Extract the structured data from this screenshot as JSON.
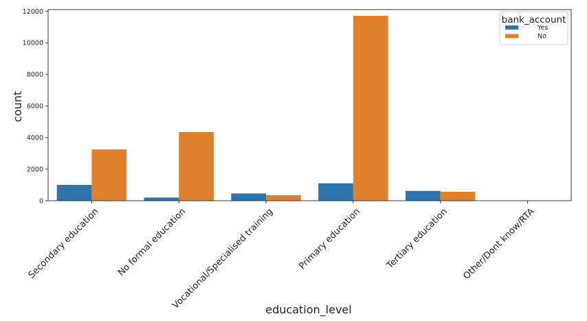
{
  "chart_data": {
    "type": "bar",
    "title": "",
    "xlabel": "education_level",
    "ylabel": "count",
    "ylim": [
      0,
      12100
    ],
    "yticks": [
      0,
      2000,
      4000,
      6000,
      8000,
      10000,
      12000
    ],
    "ytick_labels": [
      "0",
      "2000",
      "4000",
      "6000",
      "8000",
      "10000",
      "12000"
    ],
    "categories": [
      "Secondary education",
      "No formal education",
      "Vocational/Specialised training",
      "Primary education",
      "Tertiary education",
      "Other/Dont know/RTA"
    ],
    "series": [
      {
        "name": "Yes",
        "color": "#2d74ac",
        "values": [
          1000,
          200,
          460,
          1100,
          620,
          10
        ]
      },
      {
        "name": "No",
        "color": "#e0802b",
        "values": [
          3250,
          4350,
          350,
          11710,
          570,
          20
        ]
      }
    ],
    "legend": {
      "title": "bank_account",
      "position": "top-right"
    },
    "grid": false
  }
}
